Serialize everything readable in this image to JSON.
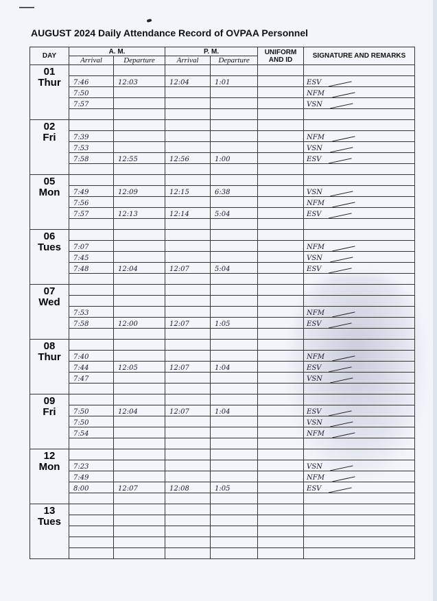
{
  "title": "AUGUST 2024  Daily Attendance Record of OVPAA Personnel",
  "headers": {
    "day": "DAY",
    "am": "A. M.",
    "pm": "P. M.",
    "uniform": "UNIFORM AND ID",
    "signature": "SIGNATURE AND REMARKS",
    "arrival": "Arrival",
    "departure": "Departure"
  },
  "days": [
    {
      "date": "01",
      "weekday": "Thur",
      "rows": [
        [
          "",
          "",
          "",
          "",
          "",
          ""
        ],
        [
          "7:46",
          "12:03",
          "12:04",
          "1:01",
          "",
          "ESV"
        ],
        [
          "7:50",
          "",
          "",
          "",
          "",
          "NFM"
        ],
        [
          "7:57",
          "",
          "",
          "",
          "",
          "VSN"
        ],
        [
          "",
          "",
          "",
          "",
          "",
          ""
        ]
      ]
    },
    {
      "date": "02",
      "weekday": "Fri",
      "rows": [
        [
          "",
          "",
          "",
          "",
          "",
          ""
        ],
        [
          "7:39",
          "",
          "",
          "",
          "",
          "NFM"
        ],
        [
          "7:53",
          "",
          "",
          "",
          "",
          "VSN"
        ],
        [
          "7:58",
          "12:55",
          "12:56",
          "1:00",
          "",
          "ESV"
        ],
        [
          "",
          "",
          "",
          "",
          "",
          ""
        ]
      ]
    },
    {
      "date": "05",
      "weekday": "Mon",
      "rows": [
        [
          "",
          "",
          "",
          "",
          "",
          ""
        ],
        [
          "7:49",
          "12:09",
          "12:15",
          "6:38",
          "",
          "VSN"
        ],
        [
          "7:56",
          "",
          "",
          "",
          "",
          "NFM"
        ],
        [
          "7:57",
          "12:13",
          "12:14",
          "5:04",
          "",
          "ESV"
        ],
        [
          "",
          "",
          "",
          "",
          "",
          ""
        ]
      ]
    },
    {
      "date": "06",
      "weekday": "Tues",
      "rows": [
        [
          "",
          "",
          "",
          "",
          "",
          ""
        ],
        [
          "7:07",
          "",
          "",
          "",
          "",
          "NFM"
        ],
        [
          "7:45",
          "",
          "",
          "",
          "",
          "VSN"
        ],
        [
          "7:48",
          "12:04",
          "12:07",
          "5:04",
          "",
          "ESV"
        ],
        [
          "",
          "",
          "",
          "",
          "",
          ""
        ]
      ]
    },
    {
      "date": "07",
      "weekday": "Wed",
      "rows": [
        [
          "",
          "",
          "",
          "",
          "",
          ""
        ],
        [
          "",
          "",
          "",
          "",
          "",
          ""
        ],
        [
          "7:53",
          "",
          "",
          "",
          "",
          "NFM"
        ],
        [
          "7:58",
          "12:00",
          "12:07",
          "1:05",
          "",
          "ESV"
        ],
        [
          "",
          "",
          "",
          "",
          "",
          ""
        ]
      ]
    },
    {
      "date": "08",
      "weekday": "Thur",
      "rows": [
        [
          "",
          "",
          "",
          "",
          "",
          ""
        ],
        [
          "7:40",
          "",
          "",
          "",
          "",
          "NFM"
        ],
        [
          "7:44",
          "12:05",
          "12:07",
          "1:04",
          "",
          "ESV"
        ],
        [
          "7:47",
          "",
          "",
          "",
          "",
          "VSN"
        ],
        [
          "",
          "",
          "",
          "",
          "",
          ""
        ]
      ]
    },
    {
      "date": "09",
      "weekday": "Fri",
      "rows": [
        [
          "",
          "",
          "",
          "",
          "",
          ""
        ],
        [
          "7:50",
          "12:04",
          "12:07",
          "1:04",
          "",
          "ESV"
        ],
        [
          "7:50",
          "",
          "",
          "",
          "",
          "VSN"
        ],
        [
          "7:54",
          "",
          "",
          "",
          "",
          "NFM"
        ],
        [
          "",
          "",
          "",
          "",
          "",
          ""
        ]
      ]
    },
    {
      "date": "12",
      "weekday": "Mon",
      "rows": [
        [
          "",
          "",
          "",
          "",
          "",
          ""
        ],
        [
          "7:23",
          "",
          "",
          "",
          "",
          "VSN"
        ],
        [
          "7:49",
          "",
          "",
          "",
          "",
          "NFM"
        ],
        [
          "8:00",
          "12:07",
          "12:08",
          "1:05",
          "",
          "ESV"
        ],
        [
          "",
          "",
          "",
          "",
          "",
          ""
        ]
      ]
    },
    {
      "date": "13",
      "weekday": "Tues",
      "rows": [
        [
          "",
          "",
          "",
          "",
          "",
          ""
        ],
        [
          "",
          "",
          "",
          "",
          "",
          ""
        ],
        [
          "",
          "",
          "",
          "",
          "",
          ""
        ],
        [
          "",
          "",
          "",
          "",
          "",
          ""
        ],
        [
          "",
          "",
          "",
          "",
          "",
          ""
        ]
      ]
    }
  ]
}
